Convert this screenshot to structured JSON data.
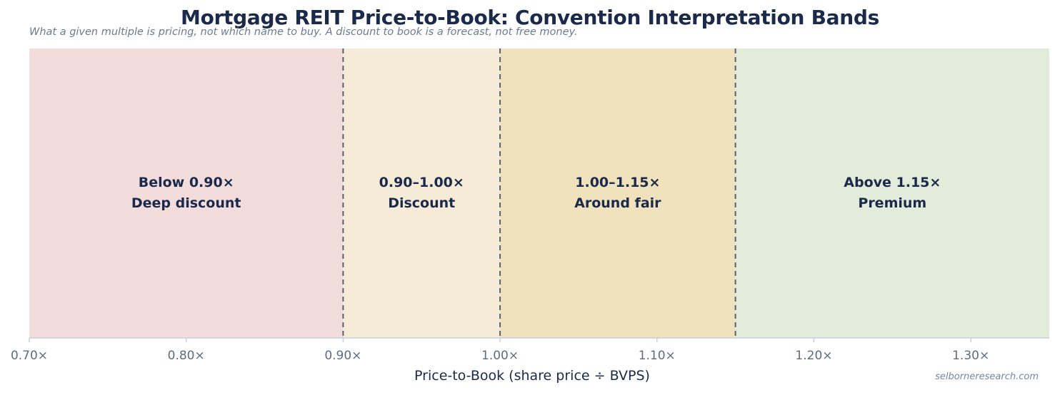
{
  "chart_data": {
    "type": "bands",
    "title": "Mortgage REIT Price-to-Book: Convention Interpretation Bands",
    "subtitle": "What a given multiple is pricing, not which name to buy. A discount to book is a forecast, not free money.",
    "xlabel": "Price-to-Book (share price ÷ BVPS)",
    "xlim": [
      0.7,
      1.35
    ],
    "ticks": [
      {
        "value": 0.7,
        "label": "0.70×"
      },
      {
        "value": 0.8,
        "label": "0.80×"
      },
      {
        "value": 0.9,
        "label": "0.90×"
      },
      {
        "value": 1.0,
        "label": "1.00×"
      },
      {
        "value": 1.1,
        "label": "1.10×"
      },
      {
        "value": 1.2,
        "label": "1.20×"
      },
      {
        "value": 1.3,
        "label": "1.30×"
      }
    ],
    "bands": [
      {
        "from": 0.7,
        "to": 0.9,
        "range_label": "Below 0.90×",
        "name": "Deep discount",
        "color": "#f2dcdc"
      },
      {
        "from": 0.9,
        "to": 1.0,
        "range_label": "0.90–1.00×",
        "name": "Discount",
        "color": "#f5ebd7"
      },
      {
        "from": 1.0,
        "to": 1.15,
        "range_label": "1.00–1.15×",
        "name": "Around fair",
        "color": "#efe2bd"
      },
      {
        "from": 1.15,
        "to": 1.35,
        "range_label": "Above 1.15×",
        "name": "Premium",
        "color": "#e3ebda"
      }
    ],
    "boundaries": [
      0.9,
      1.0,
      1.15
    ],
    "grid": false,
    "legend": "none"
  },
  "credit": "selborneresearch.com"
}
